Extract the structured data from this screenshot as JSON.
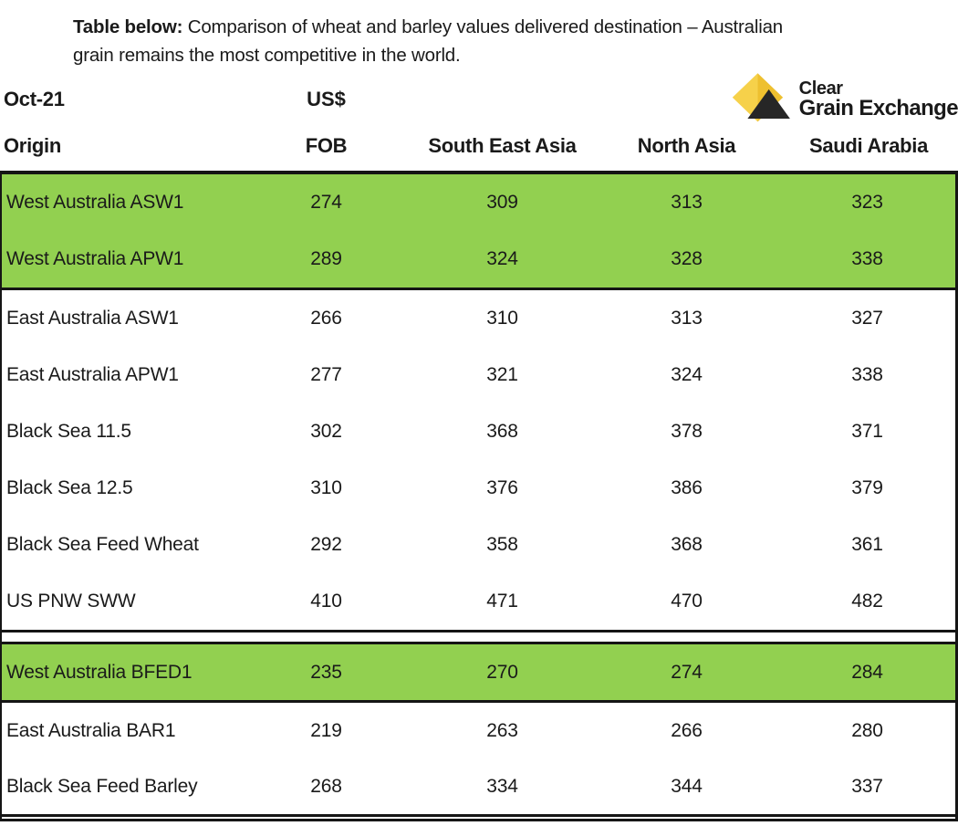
{
  "caption": {
    "prefix": "Table below:",
    "line1": " Comparison of wheat and barley values delivered destination – Australian",
    "line2": "grain remains the most competitive in the world."
  },
  "header": {
    "period": "Oct-21",
    "currency": "US$"
  },
  "logo": {
    "line1": "Clear",
    "line2": "Grain Exchange",
    "diamond_light_color": "#f6d14a",
    "diamond_dark_color": "#eec02f",
    "triangle_color": "#262626"
  },
  "columns": [
    "Origin",
    "FOB",
    "South East Asia",
    "North Asia",
    "Saudi Arabia"
  ],
  "table": {
    "highlight_color": "#92d050",
    "sections": [
      {
        "name": "wheat",
        "rows": [
          {
            "origin": "West Australia ASW1",
            "values": [
              "274",
              "309",
              "313",
              "323"
            ],
            "highlight": true
          },
          {
            "origin": "West Australia APW1",
            "values": [
              "289",
              "324",
              "328",
              "338"
            ],
            "highlight": true
          },
          {
            "origin": "East Australia ASW1",
            "values": [
              "266",
              "310",
              "313",
              "327"
            ],
            "highlight": false
          },
          {
            "origin": "East Australia APW1",
            "values": [
              "277",
              "321",
              "324",
              "338"
            ],
            "highlight": false
          },
          {
            "origin": "Black Sea 11.5",
            "values": [
              "302",
              "368",
              "378",
              "371"
            ],
            "highlight": false
          },
          {
            "origin": "Black Sea 12.5",
            "values": [
              "310",
              "376",
              "386",
              "379"
            ],
            "highlight": false
          },
          {
            "origin": "Black Sea Feed Wheat",
            "values": [
              "292",
              "358",
              "368",
              "361"
            ],
            "highlight": false
          },
          {
            "origin": "US PNW SWW",
            "values": [
              "410",
              "471",
              "470",
              "482"
            ],
            "highlight": false
          }
        ]
      },
      {
        "name": "barley",
        "rows": [
          {
            "origin": "West Australia BFED1",
            "values": [
              "235",
              "270",
              "274",
              "284"
            ],
            "highlight": true
          },
          {
            "origin": "East Australia BAR1",
            "values": [
              "219",
              "263",
              "266",
              "280"
            ],
            "highlight": false
          },
          {
            "origin": "Black Sea Feed Barley",
            "values": [
              "268",
              "334",
              "344",
              "337"
            ],
            "highlight": false
          }
        ]
      }
    ]
  }
}
